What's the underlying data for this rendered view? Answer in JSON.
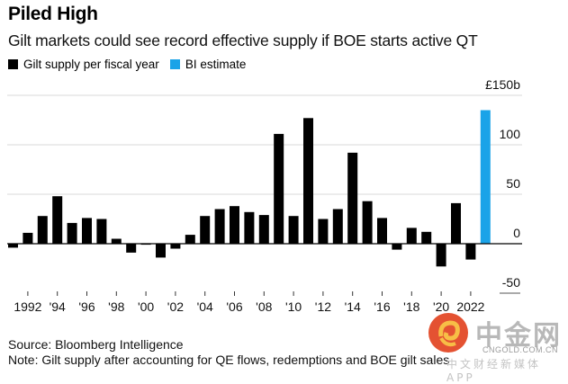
{
  "chart_data": {
    "type": "bar",
    "title": "Piled High",
    "subtitle": "Gilt markets could see record effective supply if BOE starts active QT",
    "legend": [
      {
        "label": "Gilt supply per fiscal year",
        "color": "#000000"
      },
      {
        "label": "BI estimate",
        "color": "#1aa3e8"
      }
    ],
    "legend_position": "top-left",
    "xlabel": "",
    "ylabel": "",
    "y_unit_label": "£150b",
    "ylim": [
      -50,
      150
    ],
    "yticks": [
      150,
      100,
      50,
      0,
      -50
    ],
    "ytick_labels": [
      "£150b",
      "100",
      "50",
      "0",
      "-50"
    ],
    "grid": true,
    "x_tick_years": [
      1992,
      1994,
      1996,
      1998,
      2000,
      2002,
      2004,
      2006,
      2008,
      2010,
      2012,
      2014,
      2016,
      2018,
      2020,
      2022
    ],
    "x_tick_labels": [
      "1992",
      "'94",
      "'96",
      "'98",
      "'00",
      "'02",
      "'04",
      "'06",
      "'08",
      "'10",
      "'12",
      "'14",
      "'16",
      "'18",
      "'20",
      "2022"
    ],
    "categories": [
      1991,
      1992,
      1993,
      1994,
      1995,
      1996,
      1997,
      1998,
      1999,
      2000,
      2001,
      2002,
      2003,
      2004,
      2005,
      2006,
      2007,
      2008,
      2009,
      2010,
      2011,
      2012,
      2013,
      2014,
      2015,
      2016,
      2017,
      2018,
      2019,
      2020,
      2021,
      2022,
      2023
    ],
    "series": [
      {
        "name": "Gilt supply per fiscal year",
        "color": "#000000",
        "values": [
          -4,
          11,
          28,
          48,
          21,
          26,
          25,
          5,
          -9,
          -1,
          -14,
          -5,
          9,
          28,
          35,
          38,
          32,
          29,
          111,
          28,
          127,
          25,
          35,
          92,
          43,
          26,
          -6,
          16,
          12,
          -23,
          41,
          -16,
          null
        ]
      },
      {
        "name": "BI estimate",
        "color": "#1aa3e8",
        "values": [
          null,
          null,
          null,
          null,
          null,
          null,
          null,
          null,
          null,
          null,
          null,
          null,
          null,
          null,
          null,
          null,
          null,
          null,
          null,
          null,
          null,
          null,
          null,
          null,
          null,
          null,
          null,
          null,
          null,
          null,
          null,
          null,
          135
        ]
      }
    ]
  },
  "footer": {
    "source": "Source: Bloomberg Intelligence",
    "note": "Note: Gilt supply after accounting for QE flows, redemptions and BOE gilt sales"
  },
  "watermark": {
    "brand": "中金网",
    "domain": "CNGOLD.COM.CN",
    "tagline": "中文财经新媒体APP"
  }
}
